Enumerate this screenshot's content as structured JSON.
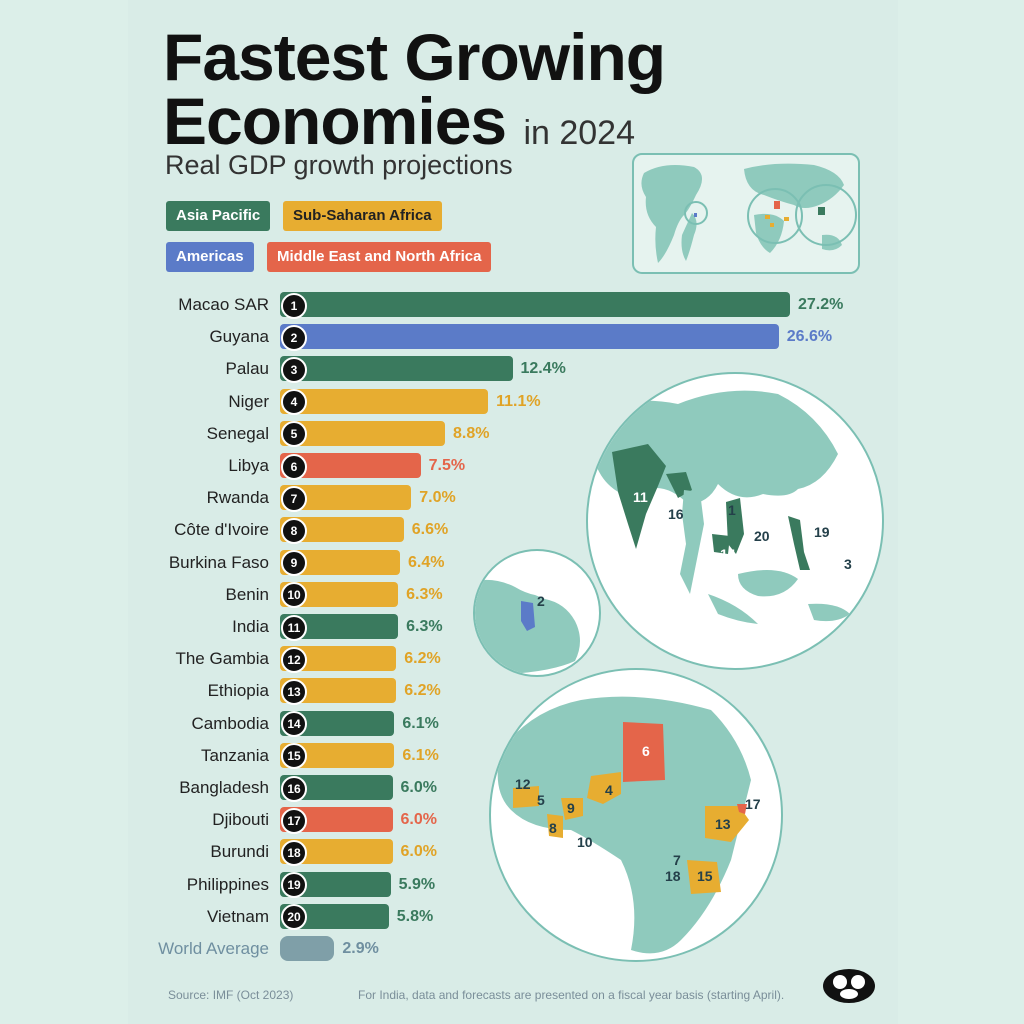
{
  "header": {
    "title_line1": "Fastest Growing",
    "title_line2": "Economies",
    "title_suffix": "in 2024",
    "subtitle": "Real GDP growth projections"
  },
  "legend": [
    {
      "label": "Asia Pacific",
      "color": "#3a7a5e"
    },
    {
      "label": "Sub-Saharan Africa",
      "color": "#e7ad31"
    },
    {
      "label": "Americas",
      "color": "#5b7bc8"
    },
    {
      "label": "Middle East and North Africa",
      "color": "#e4654a"
    }
  ],
  "chart_data": {
    "type": "bar",
    "orientation": "horizontal",
    "unit": "%",
    "categories": [
      "Macao SAR",
      "Guyana",
      "Palau",
      "Niger",
      "Senegal",
      "Libya",
      "Rwanda",
      "Côte d'Ivoire",
      "Burkina Faso",
      "Benin",
      "India",
      "The Gambia",
      "Ethiopia",
      "Cambodia",
      "Tanzania",
      "Bangladesh",
      "Djibouti",
      "Burundi",
      "Philippines",
      "Vietnam",
      "World Average"
    ],
    "ranks": [
      "1",
      "2",
      "3",
      "4",
      "5",
      "6",
      "7",
      "8",
      "9",
      "10",
      "11",
      "12",
      "13",
      "14",
      "15",
      "16",
      "17",
      "18",
      "19",
      "20",
      ""
    ],
    "values": [
      27.2,
      26.6,
      12.4,
      11.1,
      8.8,
      7.5,
      7.0,
      6.6,
      6.4,
      6.3,
      6.3,
      6.2,
      6.2,
      6.1,
      6.1,
      6.0,
      6.0,
      6.0,
      5.9,
      5.8,
      2.9
    ],
    "value_labels": [
      "27.2%",
      "26.6%",
      "12.4%",
      "11.1%",
      "8.8%",
      "7.5%",
      "7.0%",
      "6.6%",
      "6.4%",
      "6.3%",
      "6.3%",
      "6.2%",
      "6.2%",
      "6.1%",
      "6.1%",
      "6.0%",
      "6.0%",
      "6.0%",
      "5.9%",
      "5.8%",
      "2.9%"
    ],
    "regions": [
      "Asia Pacific",
      "Americas",
      "Asia Pacific",
      "Sub-Saharan Africa",
      "Sub-Saharan Africa",
      "Middle East and North Africa",
      "Sub-Saharan Africa",
      "Sub-Saharan Africa",
      "Sub-Saharan Africa",
      "Sub-Saharan Africa",
      "Asia Pacific",
      "Sub-Saharan Africa",
      "Sub-Saharan Africa",
      "Asia Pacific",
      "Sub-Saharan Africa",
      "Asia Pacific",
      "Middle East and North Africa",
      "Sub-Saharan Africa",
      "Asia Pacific",
      "Asia Pacific",
      "World Average"
    ],
    "region_colors": {
      "Asia Pacific": "#3a7a5e",
      "Sub-Saharan Africa": "#e7ad31",
      "Americas": "#5b7bc8",
      "Middle East and North Africa": "#e4654a",
      "World Average": "#7f9fa8"
    },
    "value_colors": {
      "Asia Pacific": "#3a7a5e",
      "Sub-Saharan Africa": "#e0a326",
      "Americas": "#5b7bc8",
      "Middle East and North Africa": "#e4654a",
      "World Average": "#6f8fa0"
    }
  },
  "maps": {
    "asia_labels": [
      "11",
      "16",
      "1",
      "20",
      "14",
      "19",
      "3"
    ],
    "americas_labels": [
      "2"
    ],
    "africa_labels": [
      "6",
      "12",
      "5",
      "4",
      "9",
      "8",
      "10",
      "13",
      "17",
      "7",
      "18",
      "15"
    ]
  },
  "footer": {
    "source": "Source: IMF (Oct 2023)",
    "note": "For India, data and forecasts are presented on a fiscal year basis (starting April)."
  }
}
